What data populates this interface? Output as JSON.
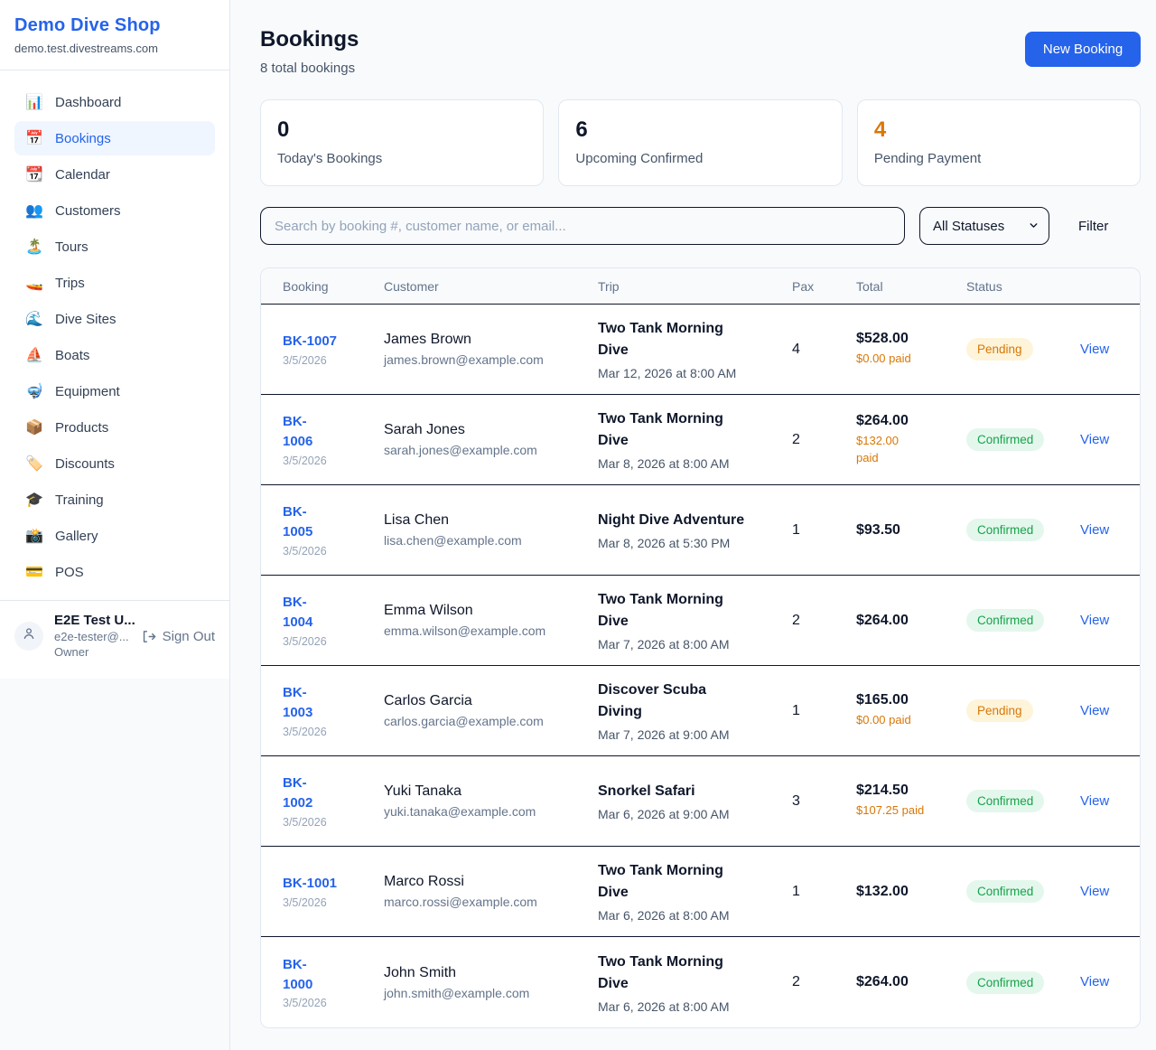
{
  "colors": {
    "accent": "#2563eb",
    "page_bg": "#f8fafc",
    "pending_text": "#d97706",
    "pending_bg": "#fdf4da",
    "confirmed_text": "#16a34a",
    "confirmed_bg": "#e4f7ec",
    "paid_orange": "#d97706",
    "dark_text": "#0f172a"
  },
  "sidebar": {
    "shop_name": "Demo Dive Shop",
    "shop_domain": "demo.test.divestreams.com",
    "items": [
      {
        "icon": "📊",
        "icon_name": "dashboard-icon",
        "label": "Dashboard",
        "active": false
      },
      {
        "icon": "📅",
        "icon_name": "bookings-icon",
        "label": "Bookings",
        "active": true
      },
      {
        "icon": "📆",
        "icon_name": "calendar-icon",
        "label": "Calendar",
        "active": false
      },
      {
        "icon": "👥",
        "icon_name": "customers-icon",
        "label": "Customers",
        "active": false
      },
      {
        "icon": "🏝️",
        "icon_name": "tours-icon",
        "label": "Tours",
        "active": false
      },
      {
        "icon": "🚤",
        "icon_name": "trips-icon",
        "label": "Trips",
        "active": false
      },
      {
        "icon": "🌊",
        "icon_name": "dive-sites-icon",
        "label": "Dive Sites",
        "active": false
      },
      {
        "icon": "⛵",
        "icon_name": "boats-icon",
        "label": "Boats",
        "active": false
      },
      {
        "icon": "🤿",
        "icon_name": "equipment-icon",
        "label": "Equipment",
        "active": false
      },
      {
        "icon": "📦",
        "icon_name": "products-icon",
        "label": "Products",
        "active": false
      },
      {
        "icon": "🏷️",
        "icon_name": "discounts-icon",
        "label": "Discounts",
        "active": false
      },
      {
        "icon": "🎓",
        "icon_name": "training-icon",
        "label": "Training",
        "active": false
      },
      {
        "icon": "📸",
        "icon_name": "gallery-icon",
        "label": "Gallery",
        "active": false
      },
      {
        "icon": "💳",
        "icon_name": "pos-icon",
        "label": "POS",
        "active": false
      }
    ],
    "user": {
      "name": "E2E Test U...",
      "email": "e2e-tester@...",
      "role": "Owner",
      "sign_out_label": "Sign Out"
    }
  },
  "header": {
    "title": "Bookings",
    "subtitle": "8 total bookings",
    "new_booking_label": "New Booking"
  },
  "stats": [
    {
      "value": "0",
      "label": "Today's Bookings",
      "value_color": "#0f172a"
    },
    {
      "value": "6",
      "label": "Upcoming Confirmed",
      "value_color": "#0f172a"
    },
    {
      "value": "4",
      "label": "Pending Payment",
      "value_color": "#d97706"
    }
  ],
  "filters": {
    "search_placeholder": "Search by booking #, customer name, or email...",
    "status_selected": "All Statuses",
    "filter_label": "Filter"
  },
  "table": {
    "columns": [
      "Booking",
      "Customer",
      "Trip",
      "Pax",
      "Total",
      "Status"
    ],
    "view_label": "View",
    "rows": [
      {
        "id": "BK-1007",
        "id_wrap": false,
        "date": "3/5/2026",
        "customer": "James Brown",
        "email": "james.brown@example.com",
        "trip": "Two Tank Morning Dive",
        "trip_wrap": true,
        "when": "Mar 12, 2026 at 8:00 AM",
        "pax": "4",
        "total": "$528.00",
        "paid": "$0.00 paid",
        "paid_wrap": false,
        "status": "Pending"
      },
      {
        "id": "BK-1006",
        "id_wrap": true,
        "date": "3/5/2026",
        "customer": "Sarah Jones",
        "email": "sarah.jones@example.com",
        "trip": "Two Tank Morning Dive",
        "trip_wrap": true,
        "when": "Mar 8, 2026 at 8:00 AM",
        "pax": "2",
        "total": "$264.00",
        "paid": "$132.00 paid",
        "paid_wrap": true,
        "status": "Confirmed"
      },
      {
        "id": "BK-1005",
        "id_wrap": true,
        "date": "3/5/2026",
        "customer": "Lisa Chen",
        "email": "lisa.chen@example.com",
        "trip": "Night Dive Adventure",
        "trip_wrap": false,
        "when": "Mar 8, 2026 at 5:30 PM",
        "pax": "1",
        "total": "$93.50",
        "paid": "",
        "paid_wrap": false,
        "status": "Confirmed"
      },
      {
        "id": "BK-1004",
        "id_wrap": true,
        "date": "3/5/2026",
        "customer": "Emma Wilson",
        "email": "emma.wilson@example.com",
        "trip": "Two Tank Morning Dive",
        "trip_wrap": true,
        "when": "Mar 7, 2026 at 8:00 AM",
        "pax": "2",
        "total": "$264.00",
        "paid": "",
        "paid_wrap": false,
        "status": "Confirmed"
      },
      {
        "id": "BK-1003",
        "id_wrap": true,
        "date": "3/5/2026",
        "customer": "Carlos Garcia",
        "email": "carlos.garcia@example.com",
        "trip": "Discover Scuba Diving",
        "trip_wrap": true,
        "when": "Mar 7, 2026 at 9:00 AM",
        "pax": "1",
        "total": "$165.00",
        "paid": "$0.00 paid",
        "paid_wrap": false,
        "status": "Pending"
      },
      {
        "id": "BK-1002",
        "id_wrap": true,
        "date": "3/5/2026",
        "customer": "Yuki Tanaka",
        "email": "yuki.tanaka@example.com",
        "trip": "Snorkel Safari",
        "trip_wrap": false,
        "when": "Mar 6, 2026 at 9:00 AM",
        "pax": "3",
        "total": "$214.50",
        "paid": "$107.25 paid",
        "paid_wrap": false,
        "status": "Confirmed"
      },
      {
        "id": "BK-1001",
        "id_wrap": false,
        "date": "3/5/2026",
        "customer": "Marco Rossi",
        "email": "marco.rossi@example.com",
        "trip": "Two Tank Morning Dive",
        "trip_wrap": true,
        "when": "Mar 6, 2026 at 8:00 AM",
        "pax": "1",
        "total": "$132.00",
        "paid": "",
        "paid_wrap": false,
        "status": "Confirmed"
      },
      {
        "id": "BK-1000",
        "id_wrap": true,
        "date": "3/5/2026",
        "customer": "John Smith",
        "email": "john.smith@example.com",
        "trip": "Two Tank Morning Dive",
        "trip_wrap": true,
        "when": "Mar 6, 2026 at 8:00 AM",
        "pax": "2",
        "total": "$264.00",
        "paid": "",
        "paid_wrap": false,
        "status": "Confirmed"
      }
    ]
  }
}
